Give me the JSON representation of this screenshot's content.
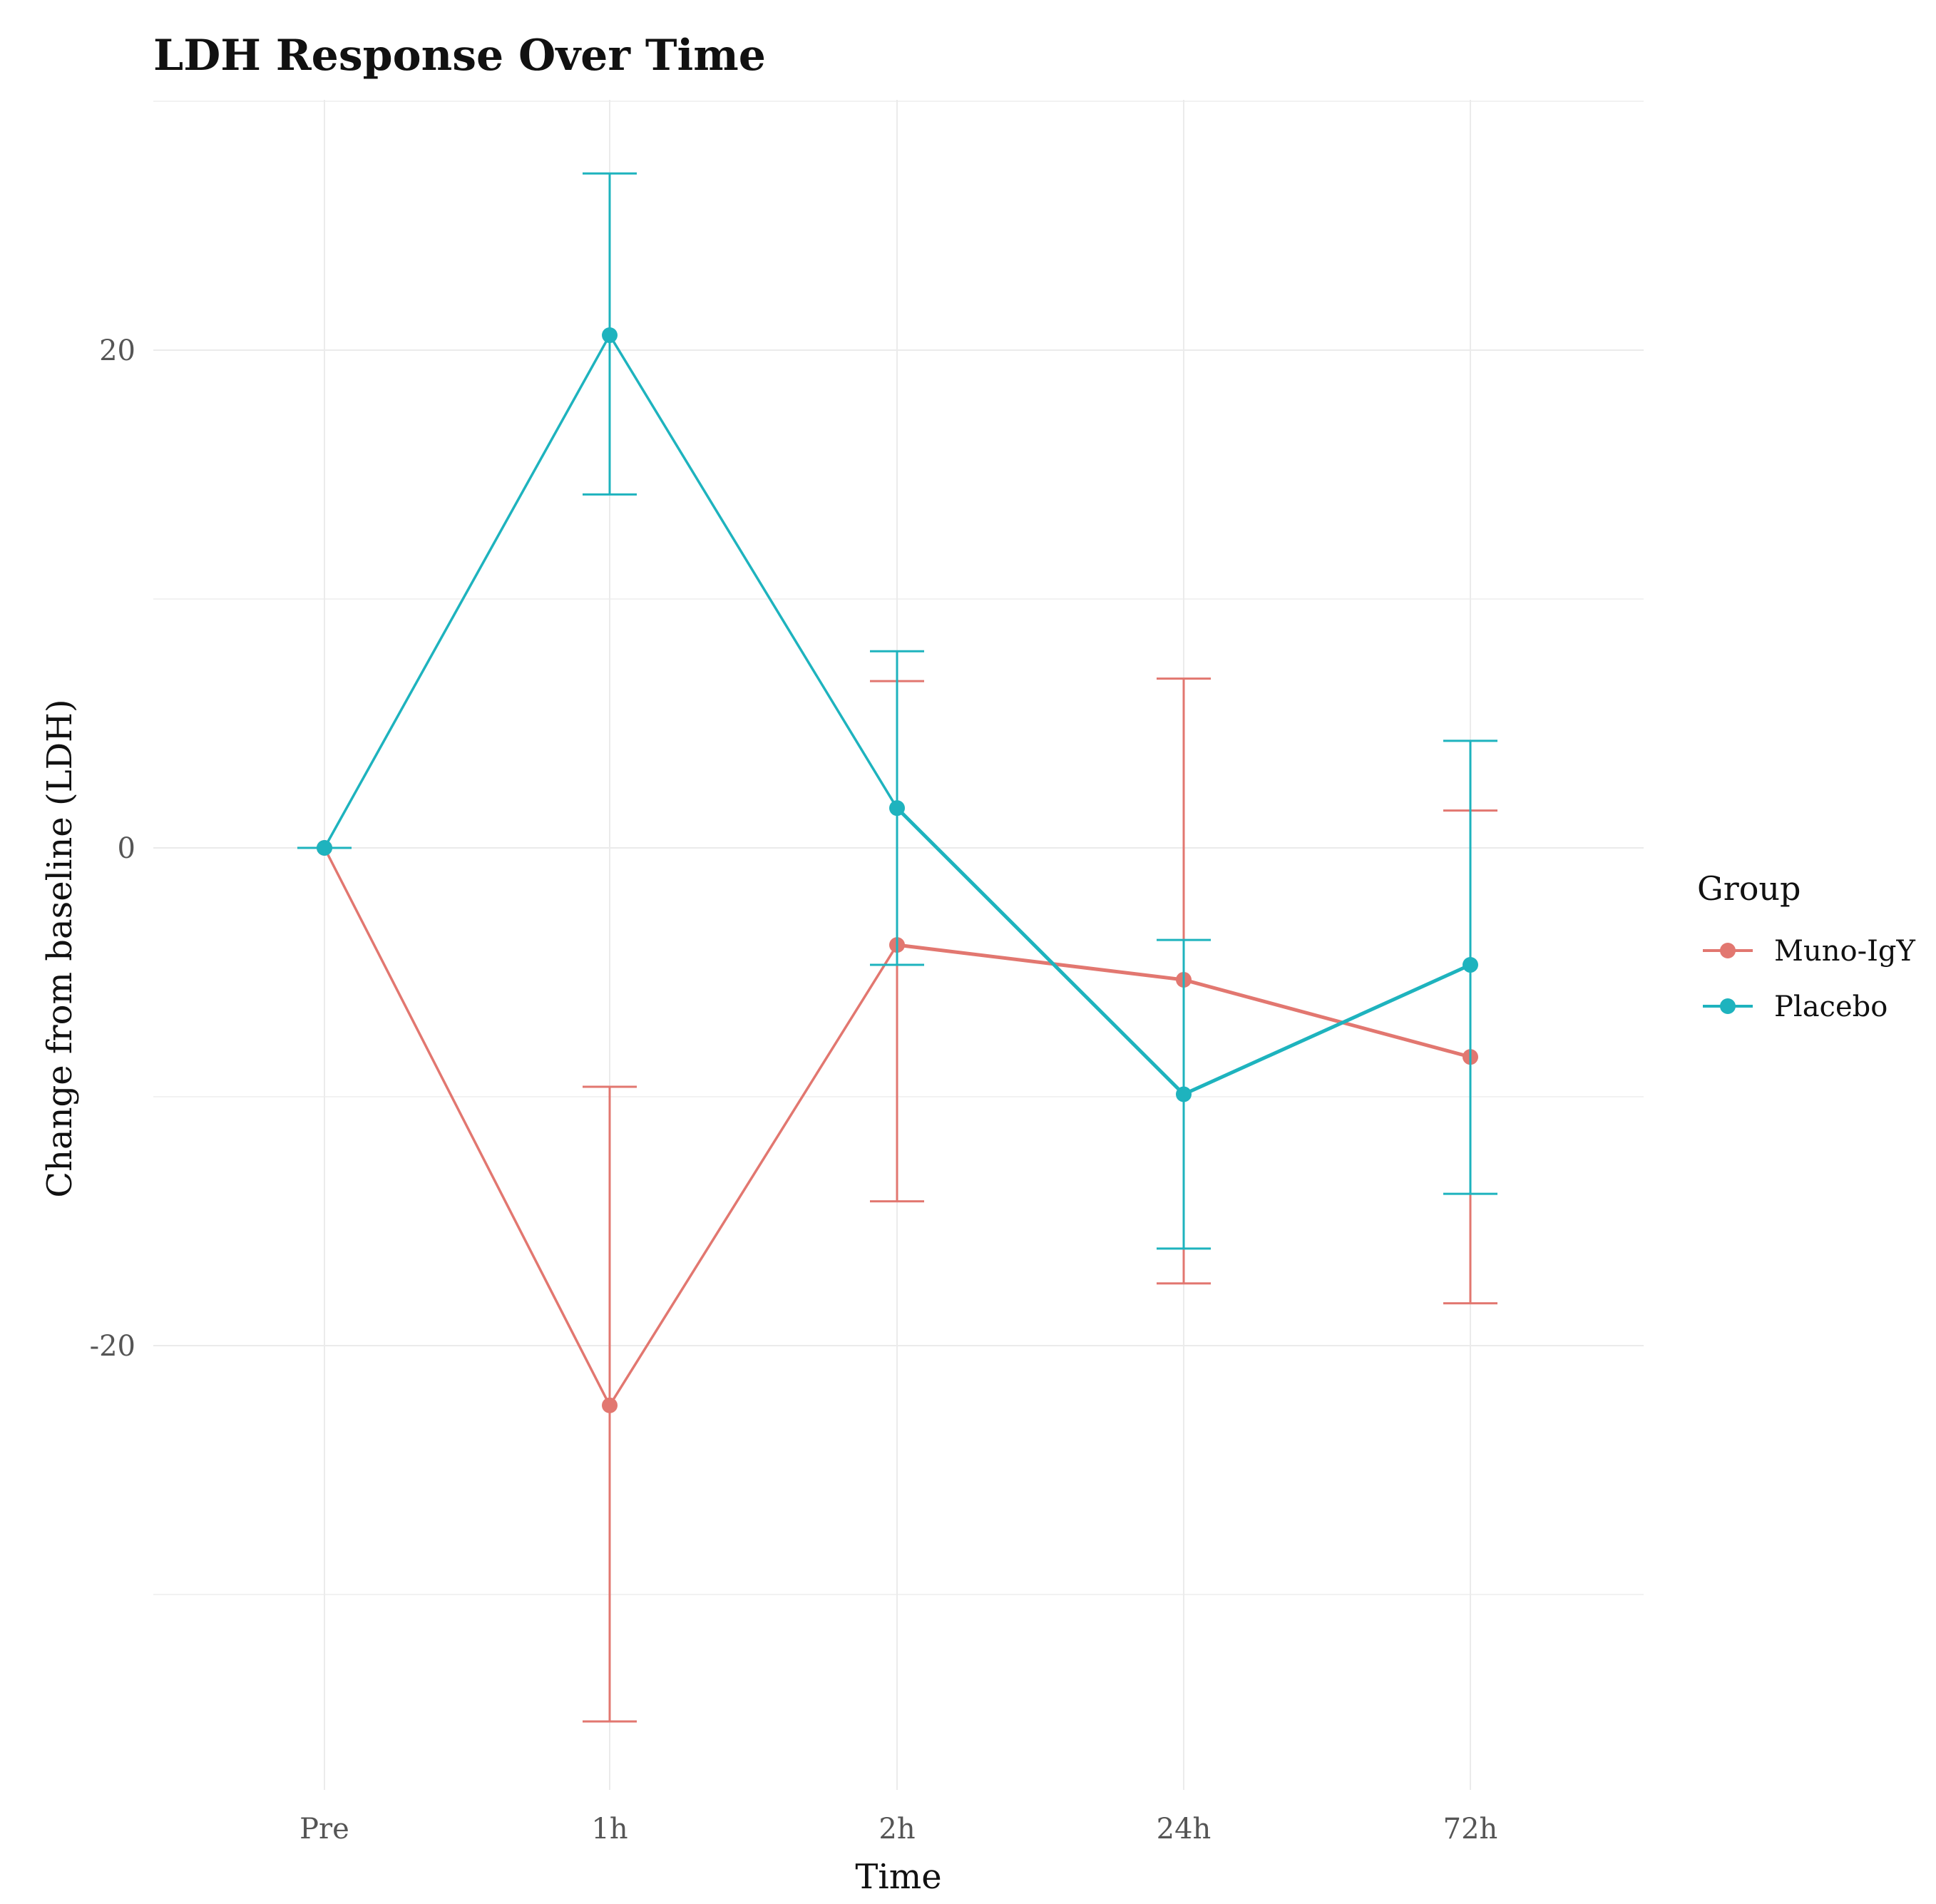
{
  "chart_data": {
    "type": "line",
    "title": "LDH Response Over Time",
    "xlabel": "Time",
    "ylabel": "Change from baseline (LDH)",
    "categories": [
      "Pre",
      "1h",
      "2h",
      "24h",
      "72h"
    ],
    "yticks": [
      20,
      0,
      -20
    ],
    "ylim": [
      -38,
      30
    ],
    "grid": true,
    "legend": {
      "title": "Group",
      "position": "right"
    },
    "series": [
      {
        "name": "Muno-IgY",
        "color": "#E27770",
        "values": [
          0,
          -22.4,
          -3.9,
          -5.3,
          -8.4
        ],
        "ci_low": [
          0,
          -35.1,
          -14.2,
          -17.5,
          -18.3
        ],
        "ci_high": [
          0,
          -9.6,
          6.7,
          6.8,
          1.5
        ]
      },
      {
        "name": "Placebo",
        "color": "#1EB3BE",
        "values": [
          0,
          20.6,
          1.6,
          -9.9,
          -4.7
        ],
        "ci_low": [
          0,
          14.2,
          -4.7,
          -16.1,
          -13.9
        ],
        "ci_high": [
          0,
          27.1,
          7.9,
          -3.7,
          4.3
        ]
      }
    ]
  }
}
